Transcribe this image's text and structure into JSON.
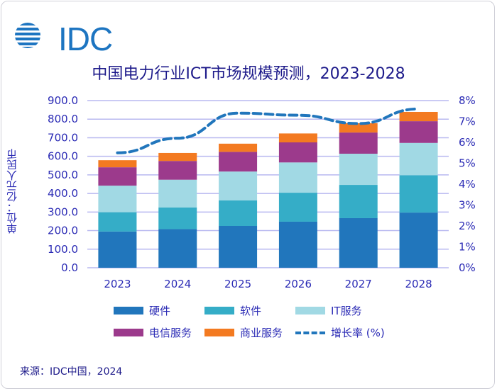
{
  "logo": {
    "text": "IDC"
  },
  "chart_data": {
    "type": "bar",
    "stacked": true,
    "title": "中国电力行业ICT市场规模预测，2023-2028",
    "ylabel": "单位：亿元人民币",
    "categories": [
      "2023",
      "2024",
      "2025",
      "2026",
      "2027",
      "2028"
    ],
    "ylim": [
      0,
      900
    ],
    "y_ticks": [
      "0.0",
      "100.0",
      "200.0",
      "300.0",
      "400.0",
      "500.0",
      "600.0",
      "700.0",
      "800.0",
      "900.0"
    ],
    "y2lim": [
      0,
      8
    ],
    "y2_ticks": [
      "0%",
      "1%",
      "2%",
      "3%",
      "4%",
      "5%",
      "6%",
      "7%",
      "8%"
    ],
    "grid": true,
    "legend_position": "bottom",
    "series": [
      {
        "name": "硬件",
        "color": "#2176bc",
        "values": [
          195,
          208,
          225,
          248,
          267,
          297
        ]
      },
      {
        "name": "软件",
        "color": "#35adc7",
        "values": [
          104,
          117,
          138,
          156,
          179,
          201
        ]
      },
      {
        "name": "IT服务",
        "color": "#a1d9e4",
        "values": [
          143,
          149,
          155,
          163,
          168,
          174
        ]
      },
      {
        "name": "电信服务",
        "color": "#9c3a8c",
        "values": [
          99,
          101,
          106,
          108,
          114,
          117
        ]
      },
      {
        "name": "商业服务",
        "color": "#f37a21",
        "values": [
          38,
          43,
          44,
          48,
          50,
          50
        ]
      }
    ],
    "line_series": {
      "name": "增长率 (%)",
      "color": "#2176bc",
      "axis": "right",
      "style": "dashed",
      "values": [
        5.5,
        6.2,
        7.4,
        7.3,
        6.9,
        7.6
      ]
    }
  },
  "source": "来源：IDC中国，2024"
}
